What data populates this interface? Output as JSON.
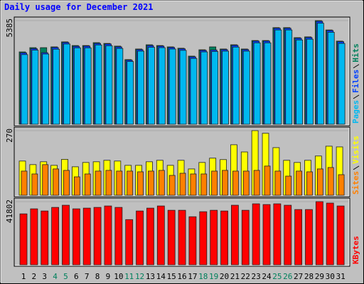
{
  "chart_data": [
    {
      "type": "bar",
      "title": "Daily usage for December 2021",
      "ylim": [
        0,
        5385
      ],
      "yticks": [
        5385
      ],
      "series": [
        {
          "name": "Hits",
          "color": "#00805C",
          "values": [
            3760,
            3980,
            3980,
            4020,
            4280,
            4090,
            4090,
            4240,
            4200,
            4060,
            3360,
            3910,
            4130,
            4090,
            4020,
            3950,
            3540,
            3870,
            4020,
            3910,
            4130,
            3910,
            4350,
            4350,
            5020,
            5020,
            4500,
            4540,
            5385,
            4900,
            4320
          ]
        },
        {
          "name": "Files",
          "color": "#0040FF",
          "values": [
            3710,
            3930,
            3720,
            3990,
            4250,
            4050,
            4060,
            4200,
            4170,
            4020,
            3330,
            3880,
            4090,
            4060,
            3990,
            3920,
            3500,
            3840,
            3860,
            3880,
            4100,
            3880,
            4320,
            4320,
            4990,
            4990,
            4470,
            4510,
            5350,
            4870,
            4290
          ]
        },
        {
          "name": "Pages",
          "color": "#00B8F0",
          "values": [
            3620,
            3850,
            3650,
            3900,
            4170,
            3970,
            3970,
            4120,
            4080,
            3940,
            3260,
            3800,
            4000,
            3980,
            3910,
            3840,
            3420,
            3760,
            3780,
            3800,
            4010,
            3800,
            4230,
            4230,
            4900,
            4900,
            4380,
            4420,
            5250,
            4780,
            4200
          ]
        }
      ]
    },
    {
      "type": "bar",
      "ylim": [
        0,
        270
      ],
      "yticks": [
        270
      ],
      "series": [
        {
          "name": "Visits",
          "color": "#FFFF00",
          "values": [
            143,
            128,
            140,
            125,
            150,
            119,
            137,
            140,
            146,
            143,
            125,
            125,
            140,
            146,
            125,
            146,
            110,
            137,
            155,
            149,
            211,
            181,
            270,
            259,
            199,
            146,
            137,
            146,
            164,
            205,
            202
          ]
        },
        {
          "name": "Sites",
          "color": "#FF8000",
          "values": [
            101,
            89,
            128,
            110,
            104,
            77,
            89,
            101,
            104,
            101,
            101,
            98,
            101,
            104,
            83,
            92,
            89,
            89,
            101,
            104,
            101,
            101,
            104,
            122,
            101,
            80,
            101,
            98,
            110,
            116,
            86
          ]
        }
      ]
    },
    {
      "type": "bar",
      "ylim": [
        0,
        41802
      ],
      "yticks": [
        41802
      ],
      "categories": [
        "1",
        "2",
        "3",
        "4",
        "5",
        "6",
        "7",
        "8",
        "9",
        "10",
        "11",
        "12",
        "13",
        "14",
        "15",
        "16",
        "17",
        "18",
        "19",
        "20",
        "21",
        "22",
        "23",
        "24",
        "25",
        "26",
        "27",
        "28",
        "29",
        "30",
        "31"
      ],
      "category_colors": [
        "#000000",
        "#000000",
        "#000000",
        "#00805C",
        "#00805C",
        "#000000",
        "#000000",
        "#000000",
        "#000000",
        "#000000",
        "#00805C",
        "#00805C",
        "#000000",
        "#000000",
        "#000000",
        "#000000",
        "#000000",
        "#00805C",
        "#00805C",
        "#000000",
        "#000000",
        "#000000",
        "#000000",
        "#000000",
        "#00805C",
        "#00805C",
        "#000000",
        "#000000",
        "#000000",
        "#000000",
        "#000000"
      ],
      "series": [
        {
          "name": "KBytes",
          "color": "#FF0000",
          "values": [
            33730,
            37050,
            35630,
            38000,
            39430,
            37050,
            37520,
            38000,
            38950,
            38000,
            29930,
            35630,
            37520,
            38950,
            36100,
            36100,
            31830,
            35150,
            36100,
            35630,
            39430,
            36100,
            40380,
            39900,
            40380,
            39430,
            36580,
            36580,
            41802,
            40850,
            38950
          ]
        }
      ]
    }
  ]
}
